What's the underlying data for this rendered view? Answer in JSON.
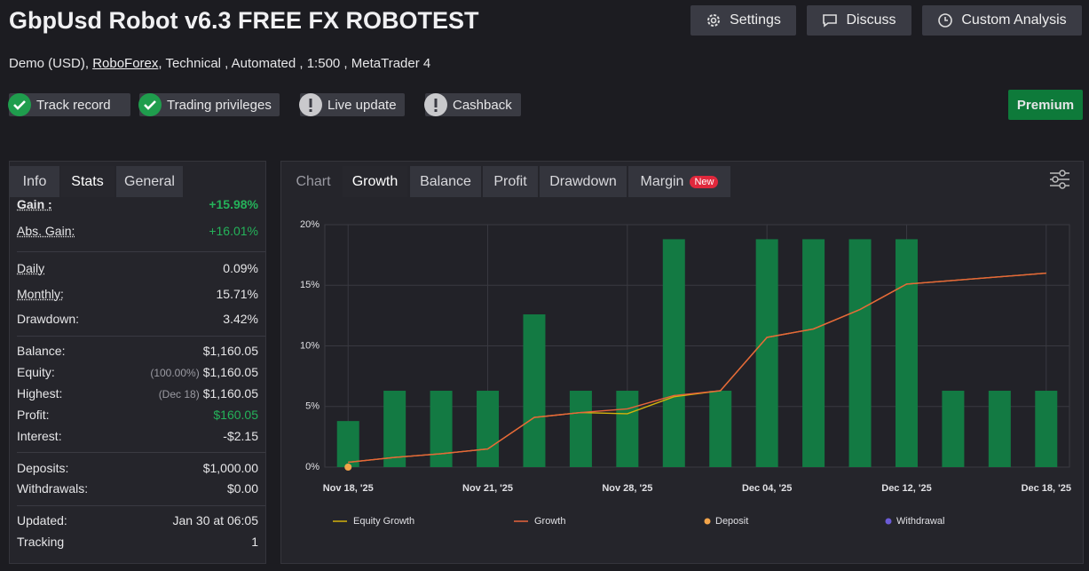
{
  "header": {
    "title": "GbpUsd Robot v6.3 FREE FX ROBOTEST",
    "subtitle": {
      "account": "Demo (USD),",
      "broker": "RoboForex",
      "details": ", Technical , Automated , 1:500 , MetaTrader 4"
    },
    "buttons": [
      "Settings",
      "Discuss",
      "Custom Analysis"
    ],
    "badges": [
      {
        "label": "Track record",
        "status": "ok"
      },
      {
        "label": "Trading privileges",
        "status": "ok"
      },
      {
        "label": "Live update",
        "status": "warn"
      },
      {
        "label": "Cashback",
        "status": "warn"
      }
    ],
    "premium": "Premium"
  },
  "stats_panel": {
    "tabs": [
      "Info",
      "Stats",
      "General"
    ],
    "groups": [
      [
        {
          "label": "Gain :",
          "value": "+15.98%"
        },
        {
          "label": "Abs. Gain:",
          "value": "+16.01%"
        }
      ],
      [
        {
          "label": "Daily",
          "value": "0.09%"
        },
        {
          "label": "Monthly:",
          "value": "15.71%"
        },
        {
          "label": "Drawdown:",
          "value": "3.42%"
        }
      ],
      [
        {
          "label": "Balance:",
          "value": "$1,160.05"
        },
        {
          "label": "Equity:",
          "note": "(100.00%)",
          "value": "$1,160.05"
        },
        {
          "label": "Highest:",
          "note": "(Dec 18)",
          "value": "$1,160.05"
        },
        {
          "label": "Profit:",
          "value": "$160.05"
        },
        {
          "label": "Interest:",
          "value": "-$2.15"
        }
      ],
      [
        {
          "label": "Deposits:",
          "value": "$1,000.00"
        },
        {
          "label": "Withdrawals:",
          "value": "$0.00"
        }
      ],
      [
        {
          "label": "Updated:",
          "value": "Jan 30 at 06:05"
        },
        {
          "label": "Tracking",
          "value": "1"
        }
      ]
    ]
  },
  "chart_panel": {
    "tabs": [
      "Chart",
      "Growth",
      "Balance",
      "Profit",
      "Drawdown",
      "Margin"
    ],
    "new_badge": "New"
  },
  "chart_data": {
    "type": "bar",
    "categories": [
      "Nov 18, '25",
      null,
      null,
      "Nov 21, '25",
      null,
      null,
      "Nov 28, '25",
      null,
      null,
      "Dec 04, '25",
      null,
      null,
      "Dec 12, '25",
      null,
      null,
      "Dec 18, '25"
    ],
    "values": [
      3.8,
      6.3,
      6.3,
      6.3,
      12.6,
      6.3,
      6.3,
      18.8,
      6.3,
      18.8,
      18.8,
      18.8,
      18.8,
      6.3,
      6.3,
      6.3
    ],
    "color": "#137a43",
    "series": [
      {
        "name": "Equity Growth",
        "type": "line",
        "color": "#d4b20c",
        "values": [
          0.4,
          0.8,
          1.1,
          1.5,
          4.1,
          4.5,
          4.4,
          5.8,
          6.3,
          10.7,
          11.4,
          13.0,
          15.1,
          15.4,
          15.7,
          16.0
        ]
      },
      {
        "name": "Growth",
        "type": "line",
        "color": "#e8643c",
        "values": [
          0.4,
          0.8,
          1.1,
          1.5,
          4.1,
          4.5,
          4.8,
          5.9,
          6.3,
          10.7,
          11.4,
          13.0,
          15.1,
          15.4,
          15.7,
          16.0
        ]
      },
      {
        "name": "Deposit",
        "type": "scatter",
        "color": "#f2a44a",
        "values": [
          0,
          null,
          null,
          null,
          null,
          null,
          null,
          null,
          null,
          null,
          null,
          null,
          null,
          null,
          null,
          null
        ]
      },
      {
        "name": "Withdrawal",
        "type": "scatter",
        "color": "#6b5bd6",
        "values": [
          null,
          null,
          null,
          null,
          null,
          null,
          null,
          null,
          null,
          null,
          null,
          null,
          null,
          null,
          null,
          null
        ]
      }
    ],
    "ylim": [
      0,
      20
    ],
    "yticks": [
      {
        "value": 0,
        "label": "0%"
      },
      {
        "value": 5,
        "label": "5%"
      },
      {
        "value": 10,
        "label": "10%"
      },
      {
        "value": 15,
        "label": "15%"
      },
      {
        "value": 20,
        "label": "20%"
      }
    ],
    "grid": true
  }
}
